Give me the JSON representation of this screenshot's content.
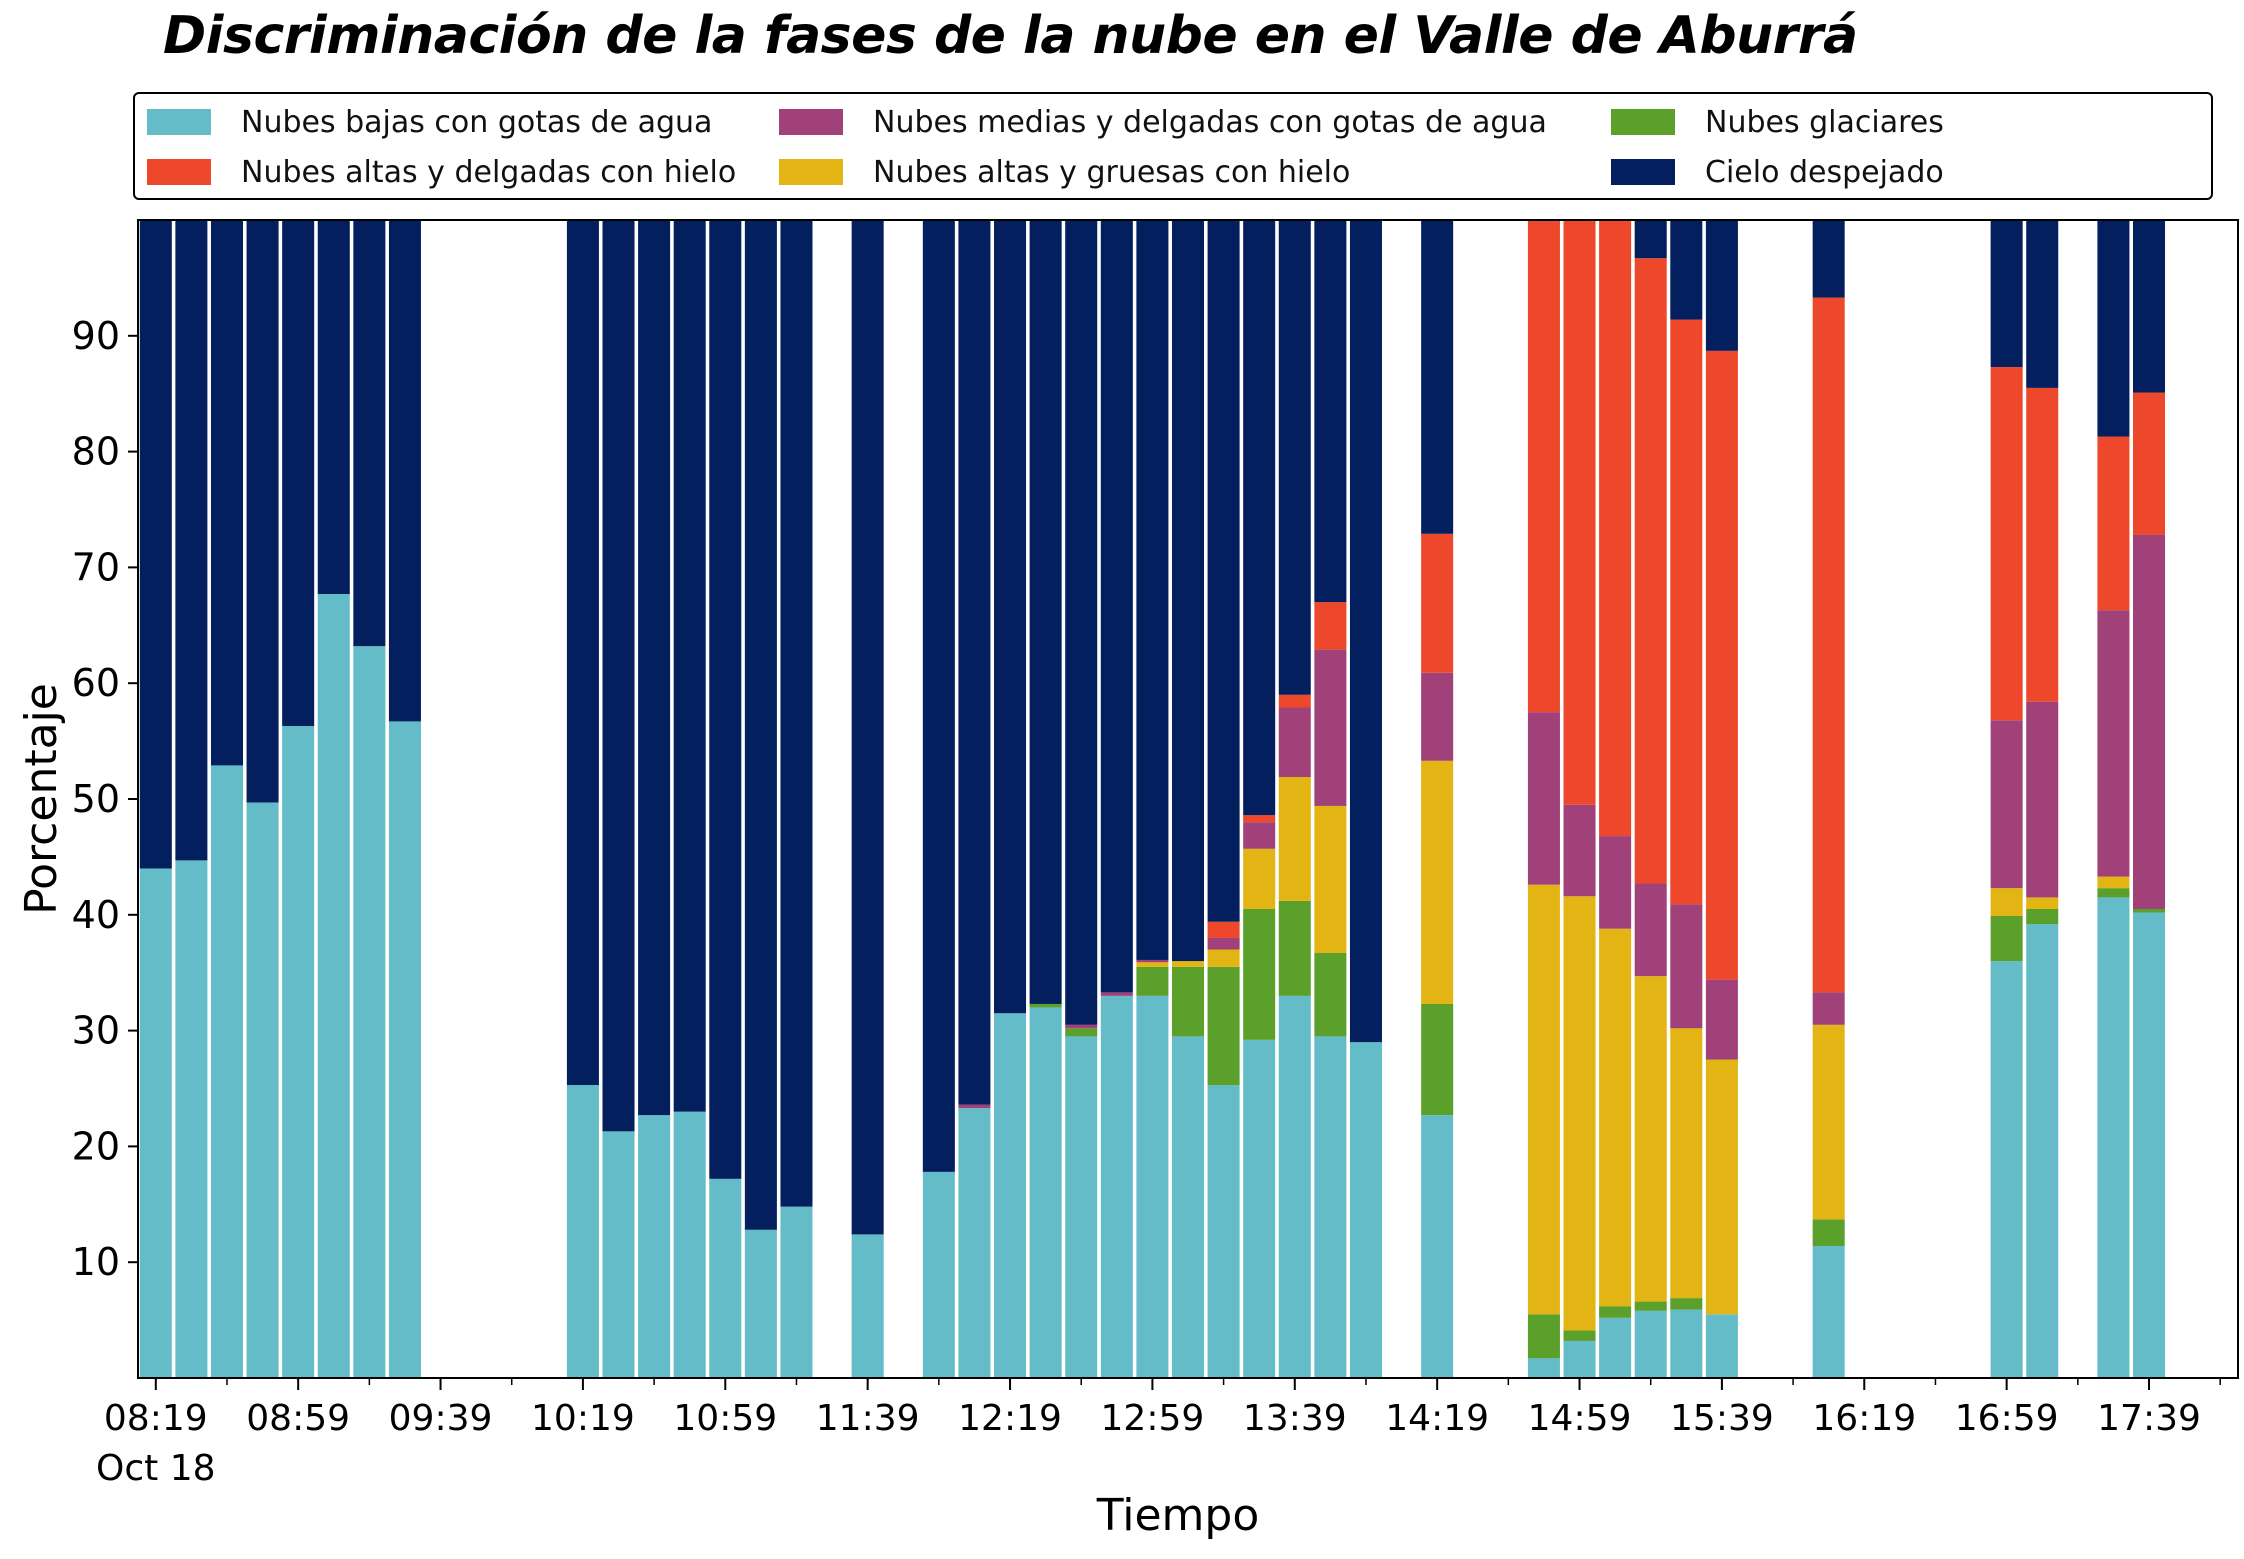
{
  "chart_data": {
    "type": "bar",
    "stacked": true,
    "title": "Discriminación de la fases de la nube en el Valle de Aburrá",
    "xlabel": "Tiempo",
    "ylabel": "Porcentaje",
    "ylim": [
      0,
      100
    ],
    "y_ticks": [
      10,
      20,
      30,
      40,
      50,
      60,
      70,
      80,
      90
    ],
    "x_domain": [
      "08:14",
      "18:04"
    ],
    "x_tick_labels": [
      "08:19",
      "08:59",
      "09:39",
      "10:19",
      "10:59",
      "11:39",
      "12:19",
      "12:59",
      "13:39",
      "14:19",
      "14:59",
      "15:39",
      "16:19",
      "16:59",
      "17:39"
    ],
    "x_major_ticks": [
      "08:19",
      "08:59",
      "09:39",
      "10:19",
      "10:59",
      "11:39",
      "12:19",
      "12:59",
      "13:39",
      "14:19",
      "14:59",
      "15:39",
      "16:19",
      "16:59",
      "17:39"
    ],
    "x_minor_ticks": [
      "08:39",
      "09:19",
      "09:59",
      "10:39",
      "11:19",
      "11:59",
      "12:39",
      "13:19",
      "13:59",
      "14:39",
      "15:19",
      "15:59",
      "16:39",
      "17:19",
      "17:59"
    ],
    "x_date_label": "Oct 18",
    "bar_width_minutes": 9,
    "grid": false,
    "legend_position": "top",
    "legend_columns": 3,
    "legend_order": [
      0,
      3,
      1,
      4,
      2,
      5
    ],
    "x": [
      "08:19",
      "08:29",
      "08:39",
      "08:49",
      "08:59",
      "09:09",
      "09:19",
      "09:29",
      "10:19",
      "10:29",
      "10:39",
      "10:49",
      "10:59",
      "11:09",
      "11:19",
      "11:39",
      "11:59",
      "12:09",
      "12:19",
      "12:29",
      "12:39",
      "12:49",
      "12:59",
      "13:09",
      "13:19",
      "13:29",
      "13:39",
      "13:49",
      "13:59",
      "14:19",
      "14:49",
      "14:59",
      "15:09",
      "15:19",
      "15:29",
      "15:39",
      "16:09",
      "16:59",
      "17:09",
      "17:29",
      "17:39"
    ],
    "series": [
      {
        "name": "Nubes bajas con gotas de agua",
        "color": "#64bcc8",
        "values": [
          44.0,
          44.7,
          52.9,
          49.7,
          56.3,
          67.7,
          63.2,
          56.7,
          25.3,
          21.3,
          22.7,
          23.0,
          17.2,
          12.8,
          14.8,
          12.4,
          17.8,
          23.3,
          31.5,
          32.0,
          29.5,
          33.0,
          33.0,
          29.5,
          25.3,
          29.2,
          33.0,
          29.5,
          29.0,
          22.7,
          1.7,
          3.2,
          5.2,
          5.8,
          5.9,
          5.5,
          11.4,
          36.0,
          39.2,
          41.5,
          40.2
        ]
      },
      {
        "name": "Nubes glaciares",
        "color": "#5aa02b",
        "values": [
          0,
          0,
          0,
          0,
          0,
          0,
          0,
          0,
          0,
          0,
          0,
          0,
          0,
          0,
          0,
          0,
          0,
          0,
          0,
          0.3,
          0.7,
          0,
          2.5,
          6.0,
          10.2,
          11.3,
          8.2,
          7.2,
          0,
          9.6,
          3.8,
          0.9,
          1.0,
          0.8,
          1.0,
          0,
          2.3,
          3.9,
          1.3,
          0.8,
          0.3
        ]
      },
      {
        "name": "Nubes altas y gruesas con hielo",
        "color": "#e2b514",
        "values": [
          0,
          0,
          0,
          0,
          0,
          0,
          0,
          0,
          0,
          0,
          0,
          0,
          0,
          0,
          0,
          0,
          0,
          0,
          0,
          0,
          0,
          0,
          0.4,
          0.5,
          1.5,
          5.2,
          10.7,
          12.7,
          0,
          21.0,
          37.1,
          37.5,
          32.6,
          28.1,
          23.3,
          22.0,
          16.8,
          2.4,
          1.0,
          1.0,
          0
        ]
      },
      {
        "name": "Nubes medias y delgadas con gotas de agua",
        "color": "#a0417a",
        "values": [
          0,
          0,
          0,
          0,
          0,
          0,
          0,
          0,
          0,
          0,
          0,
          0,
          0,
          0,
          0,
          0,
          0,
          0.3,
          0,
          0,
          0.3,
          0.3,
          0.2,
          0,
          1.0,
          2.3,
          6.0,
          13.5,
          0,
          7.6,
          14.9,
          7.9,
          8.0,
          8.0,
          10.7,
          6.9,
          2.8,
          14.5,
          16.9,
          23.0,
          32.3
        ]
      },
      {
        "name": "Nubes altas y delgadas con hielo",
        "color": "#ed482b",
        "values": [
          0,
          0,
          0,
          0,
          0,
          0,
          0,
          0,
          0,
          0,
          0,
          0,
          0,
          0,
          0,
          0,
          0,
          0,
          0,
          0,
          0,
          0,
          0,
          0,
          1.4,
          0.6,
          1.1,
          4.1,
          0,
          12.0,
          42.4,
          50.8,
          53.3,
          54.0,
          50.5,
          54.3,
          60.0,
          30.5,
          27.1,
          15.0,
          12.3
        ]
      },
      {
        "name": "Cielo despejado",
        "color": "#041f5e",
        "values": [
          56.0,
          55.3,
          47.1,
          50.3,
          43.7,
          32.3,
          36.8,
          43.3,
          74.7,
          78.7,
          77.3,
          77.0,
          82.8,
          87.2,
          85.2,
          87.6,
          82.2,
          76.4,
          68.5,
          67.7,
          69.5,
          66.7,
          63.9,
          64.0,
          60.6,
          51.4,
          41.0,
          33.0,
          71.0,
          27.1,
          0.1,
          0.2,
          0.1,
          3.3,
          8.6,
          11.3,
          6.7,
          12.7,
          14.5,
          18.7,
          14.9
        ]
      }
    ]
  }
}
